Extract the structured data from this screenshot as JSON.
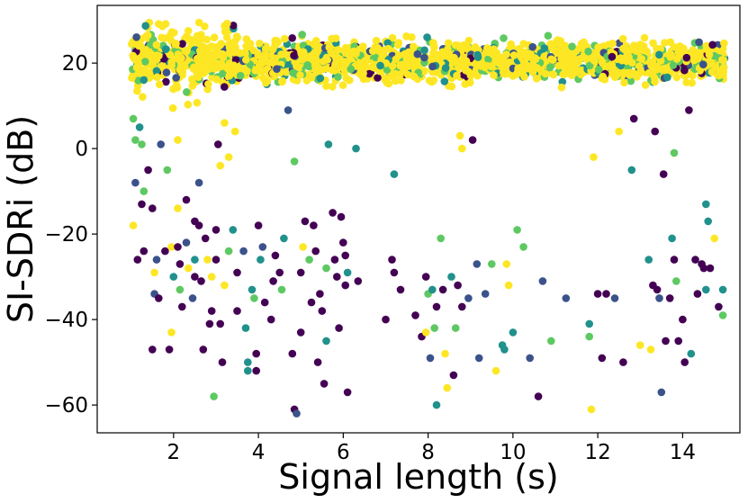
{
  "chart_data": {
    "type": "scatter",
    "title": "",
    "xlabel": "Signal length (s)",
    "ylabel": "SI-SDRi (dB)",
    "xlim": [
      0.2,
      15.35
    ],
    "ylim": [
      -66.5,
      33.5
    ],
    "xticks": [
      2,
      4,
      6,
      8,
      10,
      12,
      14
    ],
    "yticks": [
      20,
      0,
      -20,
      -40,
      -60
    ],
    "xtick_labels": [
      "2",
      "4",
      "6",
      "8",
      "10",
      "12",
      "14"
    ],
    "ytick_labels": [
      "20",
      "0",
      "−20",
      "−40",
      "−60"
    ],
    "grid": false,
    "legend": "none",
    "colormap": "viridis",
    "palette": [
      "#440154",
      "#3b528b",
      "#21918c",
      "#5ec962",
      "#fde725"
    ],
    "dense_cluster": {
      "description": "thousands of points between 1 and 15 s with SI-SDRi mostly 15-25 dB",
      "x_range": [
        1.0,
        15.0
      ],
      "y_range": [
        14,
        28
      ],
      "dominant_color": "#fde725"
    },
    "outliers": [
      {
        "x": 1.05,
        "y": 7,
        "c": 3
      },
      {
        "x": 1.1,
        "y": 2,
        "c": 3
      },
      {
        "x": 1.2,
        "y": 5,
        "c": 2
      },
      {
        "x": 1.25,
        "y": 1,
        "c": 3
      },
      {
        "x": 1.1,
        "y": -8,
        "c": 1
      },
      {
        "x": 1.3,
        "y": -10,
        "c": 3
      },
      {
        "x": 1.25,
        "y": -13,
        "c": 0
      },
      {
        "x": 1.4,
        "y": -5,
        "c": 0
      },
      {
        "x": 1.05,
        "y": -18,
        "c": 4
      },
      {
        "x": 1.15,
        "y": -26,
        "c": 0
      },
      {
        "x": 1.3,
        "y": -24,
        "c": 0
      },
      {
        "x": 1.5,
        "y": -14,
        "c": 0
      },
      {
        "x": 1.6,
        "y": -26,
        "c": 1
      },
      {
        "x": 1.55,
        "y": -29,
        "c": 4
      },
      {
        "x": 1.55,
        "y": -34,
        "c": 1
      },
      {
        "x": 1.65,
        "y": -35,
        "c": 0
      },
      {
        "x": 1.5,
        "y": -47,
        "c": 0
      },
      {
        "x": 1.7,
        "y": 1,
        "c": 1
      },
      {
        "x": 1.8,
        "y": -24,
        "c": 0
      },
      {
        "x": 1.85,
        "y": -5,
        "c": 3
      },
      {
        "x": 1.95,
        "y": -23,
        "c": 4
      },
      {
        "x": 2.0,
        "y": -30,
        "c": 2
      },
      {
        "x": 1.95,
        "y": -43,
        "c": 4
      },
      {
        "x": 1.9,
        "y": -47,
        "c": 0
      },
      {
        "x": 2.1,
        "y": 2,
        "c": 4
      },
      {
        "x": 2.1,
        "y": -14,
        "c": 4
      },
      {
        "x": 2.1,
        "y": -23,
        "c": 0
      },
      {
        "x": 2.15,
        "y": -27,
        "c": 0
      },
      {
        "x": 2.15,
        "y": -33,
        "c": 3
      },
      {
        "x": 2.2,
        "y": -37,
        "c": 0
      },
      {
        "x": 2.3,
        "y": -12,
        "c": 0
      },
      {
        "x": 2.3,
        "y": -22,
        "c": 1
      },
      {
        "x": 2.35,
        "y": -28,
        "c": 4
      },
      {
        "x": 2.45,
        "y": -35,
        "c": 1
      },
      {
        "x": 2.5,
        "y": -17,
        "c": 0
      },
      {
        "x": 2.5,
        "y": -26,
        "c": 2
      },
      {
        "x": 2.5,
        "y": -30,
        "c": 0
      },
      {
        "x": 2.6,
        "y": -8,
        "c": 1
      },
      {
        "x": 2.6,
        "y": -18,
        "c": 0
      },
      {
        "x": 2.65,
        "y": -31,
        "c": 0
      },
      {
        "x": 2.7,
        "y": -47,
        "c": 0
      },
      {
        "x": 2.75,
        "y": -21,
        "c": 0
      },
      {
        "x": 2.8,
        "y": -26,
        "c": 4
      },
      {
        "x": 2.85,
        "y": -41,
        "c": 0
      },
      {
        "x": 2.9,
        "y": -38,
        "c": 0
      },
      {
        "x": 2.9,
        "y": -30,
        "c": 4
      },
      {
        "x": 2.95,
        "y": -58,
        "c": 3
      },
      {
        "x": 3.0,
        "y": -19,
        "c": 0
      },
      {
        "x": 3.0,
        "y": -26,
        "c": 0
      },
      {
        "x": 3.05,
        "y": 1,
        "c": 0
      },
      {
        "x": 3.1,
        "y": -4,
        "c": 4
      },
      {
        "x": 3.1,
        "y": -41,
        "c": 0
      },
      {
        "x": 3.15,
        "y": -50,
        "c": 0
      },
      {
        "x": 3.2,
        "y": 6,
        "c": 4
      },
      {
        "x": 3.2,
        "y": -32,
        "c": 4
      },
      {
        "x": 3.3,
        "y": -2,
        "c": 4
      },
      {
        "x": 3.3,
        "y": -24,
        "c": 3
      },
      {
        "x": 3.4,
        "y": -19,
        "c": 2
      },
      {
        "x": 3.45,
        "y": 4,
        "c": 4
      },
      {
        "x": 3.5,
        "y": -29,
        "c": 0
      },
      {
        "x": 3.5,
        "y": -38,
        "c": 0
      },
      {
        "x": 3.65,
        "y": -24,
        "c": 1
      },
      {
        "x": 3.7,
        "y": -42,
        "c": 2
      },
      {
        "x": 3.75,
        "y": -50,
        "c": 2
      },
      {
        "x": 3.75,
        "y": -52,
        "c": 2
      },
      {
        "x": 3.85,
        "y": -33,
        "c": 2
      },
      {
        "x": 3.9,
        "y": -35,
        "c": 3
      },
      {
        "x": 3.95,
        "y": -52,
        "c": 0
      },
      {
        "x": 3.95,
        "y": -48,
        "c": 0
      },
      {
        "x": 4.0,
        "y": -18,
        "c": 0
      },
      {
        "x": 4.05,
        "y": -26,
        "c": 2
      },
      {
        "x": 4.1,
        "y": -23,
        "c": 1
      },
      {
        "x": 4.15,
        "y": -36,
        "c": 0
      },
      {
        "x": 4.3,
        "y": -40,
        "c": 0
      },
      {
        "x": 4.35,
        "y": -31,
        "c": 0
      },
      {
        "x": 4.4,
        "y": -25,
        "c": 0
      },
      {
        "x": 4.5,
        "y": -29,
        "c": 0
      },
      {
        "x": 4.55,
        "y": -33,
        "c": 3
      },
      {
        "x": 4.6,
        "y": -21,
        "c": 2
      },
      {
        "x": 4.7,
        "y": 9,
        "c": 1
      },
      {
        "x": 4.85,
        "y": -3,
        "c": 3
      },
      {
        "x": 4.8,
        "y": -48,
        "c": 0
      },
      {
        "x": 4.85,
        "y": -61,
        "c": 0
      },
      {
        "x": 4.9,
        "y": -62,
        "c": 1
      },
      {
        "x": 5.0,
        "y": -29,
        "c": 0
      },
      {
        "x": 5.05,
        "y": -23,
        "c": 4
      },
      {
        "x": 5.0,
        "y": -43,
        "c": 0
      },
      {
        "x": 5.1,
        "y": -17,
        "c": 0
      },
      {
        "x": 5.2,
        "y": -26,
        "c": 3
      },
      {
        "x": 5.25,
        "y": -36,
        "c": 0
      },
      {
        "x": 5.3,
        "y": -18,
        "c": 0
      },
      {
        "x": 5.35,
        "y": -24,
        "c": 0
      },
      {
        "x": 5.4,
        "y": -50,
        "c": 0
      },
      {
        "x": 5.45,
        "y": -34,
        "c": 0
      },
      {
        "x": 5.5,
        "y": -38,
        "c": 0
      },
      {
        "x": 5.55,
        "y": -55,
        "c": 0
      },
      {
        "x": 5.6,
        "y": -28,
        "c": 3
      },
      {
        "x": 5.6,
        "y": -45,
        "c": 2
      },
      {
        "x": 5.65,
        "y": 1,
        "c": 2
      },
      {
        "x": 5.75,
        "y": -15,
        "c": 0
      },
      {
        "x": 5.8,
        "y": -26,
        "c": 0
      },
      {
        "x": 5.85,
        "y": -30,
        "c": 0
      },
      {
        "x": 5.9,
        "y": -42,
        "c": 0
      },
      {
        "x": 5.95,
        "y": -16,
        "c": 0
      },
      {
        "x": 6.0,
        "y": -22,
        "c": 0
      },
      {
        "x": 6.05,
        "y": -25,
        "c": 0
      },
      {
        "x": 6.1,
        "y": -29,
        "c": 2
      },
      {
        "x": 6.05,
        "y": -32,
        "c": 0
      },
      {
        "x": 6.1,
        "y": -57,
        "c": 0
      },
      {
        "x": 6.3,
        "y": 0,
        "c": 2
      },
      {
        "x": 6.35,
        "y": -31,
        "c": 0
      },
      {
        "x": 7.0,
        "y": -40,
        "c": 0
      },
      {
        "x": 7.15,
        "y": -26,
        "c": 0
      },
      {
        "x": 7.2,
        "y": -29,
        "c": 0
      },
      {
        "x": 7.2,
        "y": -6,
        "c": 2
      },
      {
        "x": 7.35,
        "y": -33,
        "c": 0
      },
      {
        "x": 7.7,
        "y": -39,
        "c": 0
      },
      {
        "x": 7.85,
        "y": -44,
        "c": 0
      },
      {
        "x": 7.95,
        "y": -30,
        "c": 0
      },
      {
        "x": 7.95,
        "y": -43,
        "c": 4
      },
      {
        "x": 8.0,
        "y": -34,
        "c": 3
      },
      {
        "x": 8.05,
        "y": -49,
        "c": 1
      },
      {
        "x": 8.1,
        "y": -33,
        "c": 2
      },
      {
        "x": 8.15,
        "y": -42,
        "c": 3
      },
      {
        "x": 8.2,
        "y": -37,
        "c": 0
      },
      {
        "x": 8.2,
        "y": -60,
        "c": 2
      },
      {
        "x": 8.3,
        "y": -21,
        "c": 3
      },
      {
        "x": 8.35,
        "y": -33,
        "c": 0
      },
      {
        "x": 8.4,
        "y": -48,
        "c": 4
      },
      {
        "x": 8.45,
        "y": -56,
        "c": 4
      },
      {
        "x": 8.55,
        "y": -30,
        "c": 2
      },
      {
        "x": 8.6,
        "y": -53,
        "c": 0
      },
      {
        "x": 8.65,
        "y": -42,
        "c": 3
      },
      {
        "x": 8.7,
        "y": -32,
        "c": 0
      },
      {
        "x": 8.75,
        "y": 3,
        "c": 4
      },
      {
        "x": 8.8,
        "y": 0,
        "c": 4
      },
      {
        "x": 8.8,
        "y": -37,
        "c": 0
      },
      {
        "x": 8.95,
        "y": -35,
        "c": 1
      },
      {
        "x": 9.05,
        "y": 2,
        "c": 0
      },
      {
        "x": 9.15,
        "y": -27,
        "c": 1
      },
      {
        "x": 9.2,
        "y": -49,
        "c": 1
      },
      {
        "x": 9.35,
        "y": -34,
        "c": 1
      },
      {
        "x": 9.5,
        "y": -27,
        "c": 3
      },
      {
        "x": 9.6,
        "y": -52,
        "c": 4
      },
      {
        "x": 9.75,
        "y": -46,
        "c": 2
      },
      {
        "x": 9.8,
        "y": -47,
        "c": 2
      },
      {
        "x": 9.85,
        "y": -27,
        "c": 4
      },
      {
        "x": 9.9,
        "y": -32,
        "c": 4
      },
      {
        "x": 10.0,
        "y": -43,
        "c": 2
      },
      {
        "x": 10.1,
        "y": -19,
        "c": 3
      },
      {
        "x": 10.25,
        "y": -23,
        "c": 3
      },
      {
        "x": 10.4,
        "y": -49,
        "c": 1
      },
      {
        "x": 10.6,
        "y": -58,
        "c": 0
      },
      {
        "x": 10.7,
        "y": -31,
        "c": 1
      },
      {
        "x": 10.9,
        "y": -45,
        "c": 3
      },
      {
        "x": 11.25,
        "y": -35,
        "c": 1
      },
      {
        "x": 11.8,
        "y": -41,
        "c": 2
      },
      {
        "x": 11.8,
        "y": -44,
        "c": 3
      },
      {
        "x": 11.85,
        "y": -61,
        "c": 4
      },
      {
        "x": 11.9,
        "y": -2,
        "c": 4
      },
      {
        "x": 12.0,
        "y": -34,
        "c": 0
      },
      {
        "x": 12.1,
        "y": -49,
        "c": 0
      },
      {
        "x": 12.2,
        "y": -34,
        "c": 0
      },
      {
        "x": 12.4,
        "y": -35,
        "c": 1
      },
      {
        "x": 12.5,
        "y": 4,
        "c": 4
      },
      {
        "x": 12.6,
        "y": -50,
        "c": 0
      },
      {
        "x": 12.8,
        "y": -5,
        "c": 2
      },
      {
        "x": 12.85,
        "y": 7,
        "c": 0
      },
      {
        "x": 13.0,
        "y": -46,
        "c": 4
      },
      {
        "x": 13.2,
        "y": -26,
        "c": 2
      },
      {
        "x": 13.25,
        "y": -47,
        "c": 4
      },
      {
        "x": 13.3,
        "y": -32,
        "c": 0
      },
      {
        "x": 13.35,
        "y": 4,
        "c": 0
      },
      {
        "x": 13.4,
        "y": -33,
        "c": 0
      },
      {
        "x": 13.45,
        "y": -35,
        "c": 1
      },
      {
        "x": 13.5,
        "y": -57,
        "c": 1
      },
      {
        "x": 13.55,
        "y": -6,
        "c": 0
      },
      {
        "x": 13.6,
        "y": -45,
        "c": 0
      },
      {
        "x": 13.7,
        "y": -35,
        "c": 0
      },
      {
        "x": 13.75,
        "y": -21,
        "c": 2
      },
      {
        "x": 13.8,
        "y": -1,
        "c": 3
      },
      {
        "x": 13.8,
        "y": -26,
        "c": 0
      },
      {
        "x": 13.85,
        "y": -31,
        "c": 3
      },
      {
        "x": 13.9,
        "y": -45,
        "c": 0
      },
      {
        "x": 14.0,
        "y": -40,
        "c": 0
      },
      {
        "x": 14.05,
        "y": -50,
        "c": 0
      },
      {
        "x": 14.15,
        "y": 9,
        "c": 0
      },
      {
        "x": 14.2,
        "y": -48,
        "c": 2
      },
      {
        "x": 14.3,
        "y": -26,
        "c": 0
      },
      {
        "x": 14.35,
        "y": -34,
        "c": 0
      },
      {
        "x": 14.45,
        "y": -27,
        "c": 0
      },
      {
        "x": 14.5,
        "y": -28,
        "c": 0
      },
      {
        "x": 14.55,
        "y": -33,
        "c": 2
      },
      {
        "x": 14.55,
        "y": -13,
        "c": 2
      },
      {
        "x": 14.6,
        "y": -17,
        "c": 2
      },
      {
        "x": 14.65,
        "y": -28,
        "c": 0
      },
      {
        "x": 14.75,
        "y": -21,
        "c": 4
      },
      {
        "x": 14.85,
        "y": -37,
        "c": 0
      },
      {
        "x": 14.95,
        "y": -33,
        "c": 2
      },
      {
        "x": 14.95,
        "y": -39,
        "c": 3
      }
    ]
  }
}
